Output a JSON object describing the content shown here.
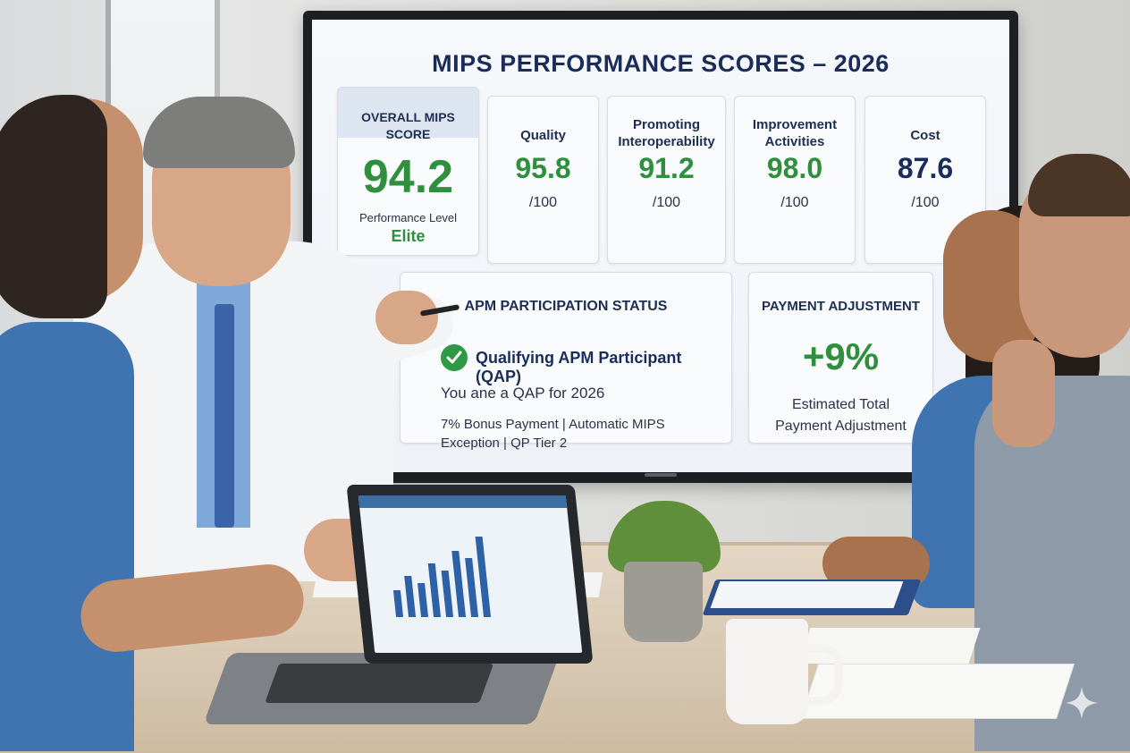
{
  "dashboard": {
    "title": "MIPS PERFORMANCE SCORES – 2026",
    "overall": {
      "label": "OVERALL MIPS SCORE",
      "value": "94.2",
      "level_label": "Performance Level",
      "level_value": "Elite"
    },
    "metrics": [
      {
        "label_1": "Quality",
        "label_2": "",
        "value": "95.8",
        "out_of": "/100"
      },
      {
        "label_1": "Promoting",
        "label_2": "Interoperability",
        "value": "91.2",
        "out_of": "/100"
      },
      {
        "label_1": "Improvement",
        "label_2": "Activities",
        "value": "98.0",
        "out_of": "/100"
      },
      {
        "label_1": "Cost",
        "label_2": "",
        "value": "87.6",
        "out_of": "/100"
      }
    ],
    "apm": {
      "label": "APM PARTICIPATION STATUS",
      "status": "Qualifying APM Participant (QAP)",
      "message": "You ane a QAP for 2026",
      "details": "7% Bonus Payment | Automatic MIPS Exception | QP Tier 2",
      "status_icon": "check-circle-icon"
    },
    "payment": {
      "label": "PAYMENT ADJUSTMENT",
      "value": "+9%",
      "caption_1": "Estimated Total",
      "caption_2": "Payment Adjustment"
    }
  },
  "colors": {
    "title": "#1a2d5a",
    "positive": "#2f8f3e",
    "cost_value": "#1a2d5a"
  }
}
